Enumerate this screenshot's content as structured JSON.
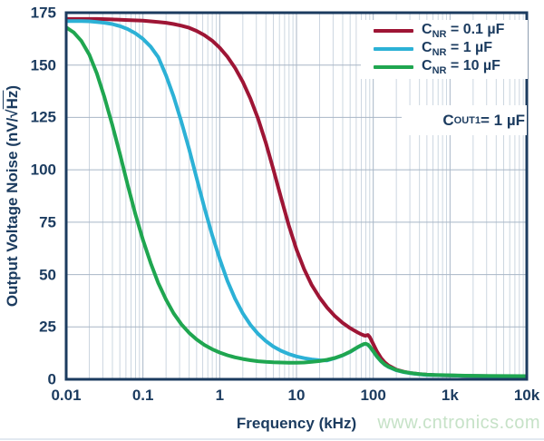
{
  "watermark": "www.cntronics.com",
  "chart_data": {
    "type": "line",
    "title": "",
    "xlabel": "Frequency (kHz)",
    "ylabel": "Output Voltage Noise (nV/√Hz)",
    "ylabel_parts": {
      "pre": "Output Voltage Noise (nV/",
      "radical": "√",
      "overline": "Hz",
      "post": ")"
    },
    "x_scale": "log",
    "xlim": [
      0.01,
      10000
    ],
    "ylim": [
      0,
      175
    ],
    "grid": "vertical log minors + horizontal lines every 25",
    "legend_position": "top-right-inside",
    "colors": {
      "axis_text": "#1b3b5f",
      "frame": "#1b3b5f",
      "grid_major": "#a8b6c6",
      "grid_minor": "#ccd6e0",
      "watermark": "#c6e2c7"
    },
    "y_ticks": [
      {
        "value": 175,
        "label": "175"
      },
      {
        "value": 150,
        "label": "150"
      },
      {
        "value": 125,
        "label": "125"
      },
      {
        "value": 100,
        "label": "100"
      },
      {
        "value": 75,
        "label": "75"
      },
      {
        "value": 50,
        "label": "50"
      },
      {
        "value": 25,
        "label": "25"
      },
      {
        "value": 0,
        "label": "0"
      }
    ],
    "x_ticks": [
      {
        "value": 0.01,
        "label": "0.01"
      },
      {
        "value": 0.1,
        "label": "0.1"
      },
      {
        "value": 1,
        "label": "1"
      },
      {
        "value": 10,
        "label": "10"
      },
      {
        "value": 100,
        "label": "100"
      },
      {
        "value": 1000,
        "label": "1k"
      },
      {
        "value": 10000,
        "label": "10k"
      }
    ],
    "annotation": {
      "text": "COUT1 = 1 µF",
      "main": "C",
      "sub": "OUT1",
      "rest": " = 1 µF"
    },
    "series": [
      {
        "name": "CNR = 0.1 uF",
        "label_main": "C",
        "label_sub": "NR",
        "label_rest": " = 0.1 µF",
        "color": "#9e1535",
        "points": [
          [
            0.01,
            172
          ],
          [
            0.0158,
            172
          ],
          [
            0.0251,
            172
          ],
          [
            0.0398,
            171.8
          ],
          [
            0.0631,
            171.5
          ],
          [
            0.1,
            171.2
          ],
          [
            0.158,
            170.6
          ],
          [
            0.2,
            170.2
          ],
          [
            0.251,
            169.6
          ],
          [
            0.316,
            168.8
          ],
          [
            0.398,
            167.8
          ],
          [
            0.501,
            166.3
          ],
          [
            0.631,
            164.3
          ],
          [
            0.794,
            161.7
          ],
          [
            1,
            158.3
          ],
          [
            1.26,
            154
          ],
          [
            1.58,
            148.7
          ],
          [
            2,
            142
          ],
          [
            2.51,
            134
          ],
          [
            3.16,
            124.5
          ],
          [
            3.98,
            113
          ],
          [
            5.01,
            100
          ],
          [
            6.31,
            86.5
          ],
          [
            7.94,
            73.5
          ],
          [
            10,
            62
          ],
          [
            12.6,
            52.5
          ],
          [
            15.8,
            45
          ],
          [
            20,
            39
          ],
          [
            25.1,
            34.2
          ],
          [
            31.6,
            30.2
          ],
          [
            39.8,
            27
          ],
          [
            50.1,
            24.4
          ],
          [
            63.1,
            22.3
          ],
          [
            70,
            21.5
          ],
          [
            75,
            21
          ],
          [
            79.4,
            20.8
          ],
          [
            85,
            21.2
          ],
          [
            90,
            20.2
          ],
          [
            100,
            16.8
          ],
          [
            112,
            13.2
          ],
          [
            126,
            10.2
          ],
          [
            141,
            8.1
          ],
          [
            158,
            6.6
          ],
          [
            200,
            4.6
          ],
          [
            251,
            3.6
          ],
          [
            316,
            2.9
          ],
          [
            398,
            2.5
          ],
          [
            501,
            2.2
          ],
          [
            631,
            2
          ],
          [
            794,
            1.9
          ],
          [
            1000,
            1.8
          ],
          [
            1580,
            1.65
          ],
          [
            2510,
            1.55
          ],
          [
            5010,
            1.45
          ],
          [
            10000,
            1.4
          ]
        ]
      },
      {
        "name": "CNR = 1 uF",
        "label_main": "C",
        "label_sub": "NR",
        "label_rest": " = 1 µF",
        "color": "#2cb1d6",
        "points": [
          [
            0.01,
            171
          ],
          [
            0.0158,
            171
          ],
          [
            0.02,
            170.9
          ],
          [
            0.0251,
            170.6
          ],
          [
            0.0316,
            170.2
          ],
          [
            0.0398,
            169.6
          ],
          [
            0.0501,
            168.6
          ],
          [
            0.0631,
            167.2
          ],
          [
            0.0794,
            165.2
          ],
          [
            0.1,
            162.5
          ],
          [
            0.126,
            158.8
          ],
          [
            0.158,
            153.8
          ],
          [
            0.2,
            145
          ],
          [
            0.251,
            135
          ],
          [
            0.316,
            123
          ],
          [
            0.398,
            110
          ],
          [
            0.501,
            96
          ],
          [
            0.631,
            82
          ],
          [
            0.794,
            69
          ],
          [
            1,
            57.5
          ],
          [
            1.26,
            47
          ],
          [
            1.58,
            38.5
          ],
          [
            2,
            31.5
          ],
          [
            2.51,
            26
          ],
          [
            3.16,
            21.7
          ],
          [
            3.98,
            18.3
          ],
          [
            5.01,
            15.6
          ],
          [
            6.31,
            13.6
          ],
          [
            7.94,
            12.1
          ],
          [
            10,
            10.9
          ],
          [
            12.6,
            10.1
          ],
          [
            15.8,
            9.5
          ],
          [
            20,
            9.1
          ],
          [
            25.1,
            9
          ],
          [
            31.6,
            10.1
          ],
          [
            39.8,
            11.4
          ],
          [
            50.1,
            13.1
          ],
          [
            63.1,
            15.3
          ],
          [
            70,
            16.2
          ],
          [
            75,
            16.7
          ],
          [
            79.4,
            16.9
          ],
          [
            85,
            16.5
          ],
          [
            90,
            15.6
          ],
          [
            100,
            13.3
          ],
          [
            112,
            10.8
          ],
          [
            126,
            8.6
          ],
          [
            141,
            7
          ],
          [
            158,
            5.9
          ],
          [
            200,
            4.3
          ],
          [
            251,
            3.4
          ],
          [
            316,
            2.8
          ],
          [
            398,
            2.4
          ],
          [
            501,
            2.1
          ],
          [
            631,
            2
          ],
          [
            794,
            1.9
          ],
          [
            1000,
            1.8
          ],
          [
            1580,
            1.65
          ],
          [
            2510,
            1.55
          ],
          [
            5010,
            1.45
          ],
          [
            10000,
            1.4
          ]
        ]
      },
      {
        "name": "CNR = 10 uF",
        "label_main": "C",
        "label_sub": "NR",
        "label_rest": " = 10 µF",
        "color": "#1fa650",
        "points": [
          [
            0.01,
            168
          ],
          [
            0.0126,
            165.5
          ],
          [
            0.0158,
            161.5
          ],
          [
            0.02,
            155
          ],
          [
            0.0251,
            146
          ],
          [
            0.0316,
            134.5
          ],
          [
            0.0398,
            121.5
          ],
          [
            0.0501,
            107.5
          ],
          [
            0.0631,
            93
          ],
          [
            0.0794,
            79
          ],
          [
            0.1,
            66.5
          ],
          [
            0.126,
            55.5
          ],
          [
            0.158,
            46
          ],
          [
            0.2,
            38
          ],
          [
            0.251,
            31.5
          ],
          [
            0.316,
            26.3
          ],
          [
            0.398,
            22.2
          ],
          [
            0.501,
            19
          ],
          [
            0.631,
            16.4
          ],
          [
            0.794,
            14.4
          ],
          [
            1,
            12.8
          ],
          [
            1.26,
            11.5
          ],
          [
            1.58,
            10.5
          ],
          [
            2,
            9.7
          ],
          [
            2.51,
            9.1
          ],
          [
            3.16,
            8.6
          ],
          [
            3.98,
            8.3
          ],
          [
            5.01,
            8.1
          ],
          [
            6.31,
            8
          ],
          [
            7.94,
            7.9
          ],
          [
            10,
            7.9
          ],
          [
            12.6,
            8
          ],
          [
            15.8,
            8.3
          ],
          [
            20,
            8.7
          ],
          [
            25.1,
            9.3
          ],
          [
            31.6,
            10.2
          ],
          [
            39.8,
            11.5
          ],
          [
            50.1,
            13.2
          ],
          [
            63.1,
            15.4
          ],
          [
            70,
            16.3
          ],
          [
            75,
            16.8
          ],
          [
            79.4,
            17
          ],
          [
            85,
            16.6
          ],
          [
            90,
            15.7
          ],
          [
            100,
            13.4
          ],
          [
            112,
            10.9
          ],
          [
            126,
            8.7
          ],
          [
            141,
            7.1
          ],
          [
            158,
            6
          ],
          [
            200,
            4.4
          ],
          [
            251,
            3.5
          ],
          [
            316,
            2.9
          ],
          [
            398,
            2.5
          ],
          [
            501,
            2.2
          ],
          [
            631,
            2.1
          ],
          [
            794,
            2
          ],
          [
            1000,
            1.9
          ],
          [
            1580,
            1.75
          ],
          [
            2510,
            1.65
          ],
          [
            5010,
            1.55
          ],
          [
            10000,
            1.5
          ]
        ]
      }
    ]
  }
}
